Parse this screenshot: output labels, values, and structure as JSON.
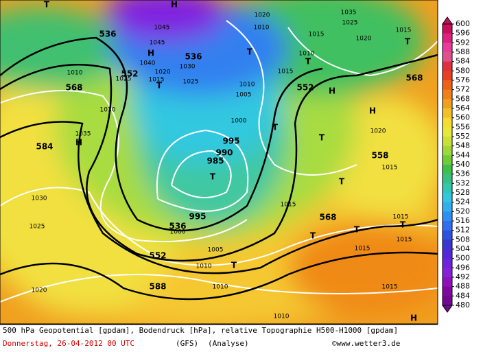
{
  "map": {
    "labels": [
      "H",
      "T",
      "536",
      "1045",
      "1045",
      "H",
      "1040",
      "536",
      "1030",
      "1020",
      "1015",
      "T",
      "1025",
      "552",
      "568",
      "1010",
      "1025",
      "1030",
      "1035",
      "H",
      "584",
      "1030",
      "1025",
      "1020",
      "T",
      "1020",
      "1010",
      "1015",
      "1010",
      "T",
      "1015",
      "552",
      "H",
      "1010",
      "1005",
      "1000",
      "T",
      "995",
      "990",
      "985",
      "T",
      "995",
      "536",
      "1000",
      "T",
      "1020",
      "H",
      "558",
      "1015",
      "T",
      "1015",
      "568",
      "T",
      "T",
      "1015",
      "1015",
      "1015",
      "T",
      "552",
      "1005",
      "1010",
      "T",
      "1010",
      "588",
      "1015",
      "1010",
      "H",
      "1035",
      "1025",
      "1020",
      "T",
      "568",
      "1015"
    ]
  },
  "colorbar": {
    "ticks": [
      600,
      596,
      592,
      588,
      584,
      580,
      576,
      572,
      568,
      564,
      560,
      556,
      552,
      548,
      544,
      540,
      536,
      532,
      528,
      524,
      520,
      516,
      512,
      508,
      504,
      500,
      496,
      492,
      488,
      484,
      480
    ]
  },
  "footer": {
    "description": "500 hPa Geopotential [gpdam], Bodendruck [hPa], relative Topographie H500-H1000 [gpdam]",
    "date": "Donnerstag, 26-04-2012  00 UTC",
    "model": "(GFS)",
    "run": "(Analyse)",
    "credit": "©www.wetter3.de"
  }
}
